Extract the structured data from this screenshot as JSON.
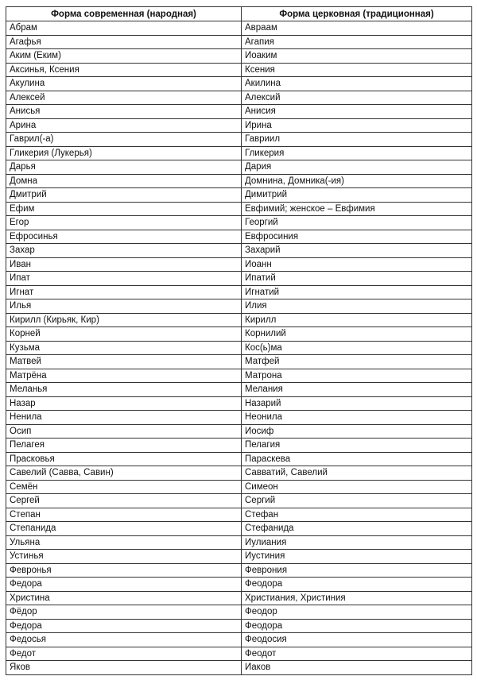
{
  "table": {
    "headers": [
      "Форма современная (народная)",
      "Форма церковная (традиционная)"
    ],
    "rows": [
      [
        "Абрам",
        "Авраам"
      ],
      [
        "Агафья",
        "Агапия"
      ],
      [
        "Аким (Еким)",
        "Иоаким"
      ],
      [
        "Аксинья, Ксения",
        "Ксения"
      ],
      [
        "Акулина",
        "Акилина"
      ],
      [
        "Алексей",
        "Алексий"
      ],
      [
        "Анисья",
        "Анисия"
      ],
      [
        "Арина",
        "Ирина"
      ],
      [
        "Гаврил(-а)",
        "Гавриил"
      ],
      [
        "Гликерия (Лукерья)",
        "Гликерия"
      ],
      [
        "Дарья",
        "Дария"
      ],
      [
        "Домна",
        "Домнина, Домника(-ия)"
      ],
      [
        "Дмитрий",
        "Димитрий"
      ],
      [
        "Ефим",
        "Евфимий; женское – Евфимия"
      ],
      [
        "Егор",
        "Георгий"
      ],
      [
        "Ефросинья",
        "Евфросиния"
      ],
      [
        "Захар",
        "Захарий"
      ],
      [
        "Иван",
        "Иоанн"
      ],
      [
        "Ипат",
        "Ипатий"
      ],
      [
        "Игнат",
        "Игнатий"
      ],
      [
        "Илья",
        "Илия"
      ],
      [
        "Кирилл (Кирьяк, Кир)",
        "Кирилл"
      ],
      [
        "Корней",
        "Корнилий"
      ],
      [
        "Кузьма",
        "Кос(ь)ма"
      ],
      [
        "Матвей",
        "Матфей"
      ],
      [
        "Матрёна",
        "Матрона"
      ],
      [
        "Меланья",
        "Мелания"
      ],
      [
        "Назар",
        "Назарий"
      ],
      [
        "Ненила",
        "Неонила"
      ],
      [
        "Осип",
        "Иосиф"
      ],
      [
        "Пелагея",
        "Пелагия"
      ],
      [
        "Прасковья",
        "Параскева"
      ],
      [
        "Савелий (Савва, Савин)",
        "Савватий, Савелий"
      ],
      [
        "Семён",
        "Симеон"
      ],
      [
        "Сергей",
        "Сергий"
      ],
      [
        "Степан",
        "Стефан"
      ],
      [
        "Степанида",
        "Стефанида"
      ],
      [
        "Ульяна",
        "Иулиания"
      ],
      [
        "Устинья",
        "Иустиния"
      ],
      [
        "Февронья",
        "Феврония"
      ],
      [
        "Федора",
        "Феодора"
      ],
      [
        "Христина",
        "Христиания, Христиния"
      ],
      [
        "Фёдор",
        "Феодор"
      ],
      [
        "Федора",
        "Феодора"
      ],
      [
        "Федосья",
        "Феодосия"
      ],
      [
        "Федот",
        "Феодот"
      ],
      [
        "Яков",
        "Иаков"
      ]
    ]
  }
}
